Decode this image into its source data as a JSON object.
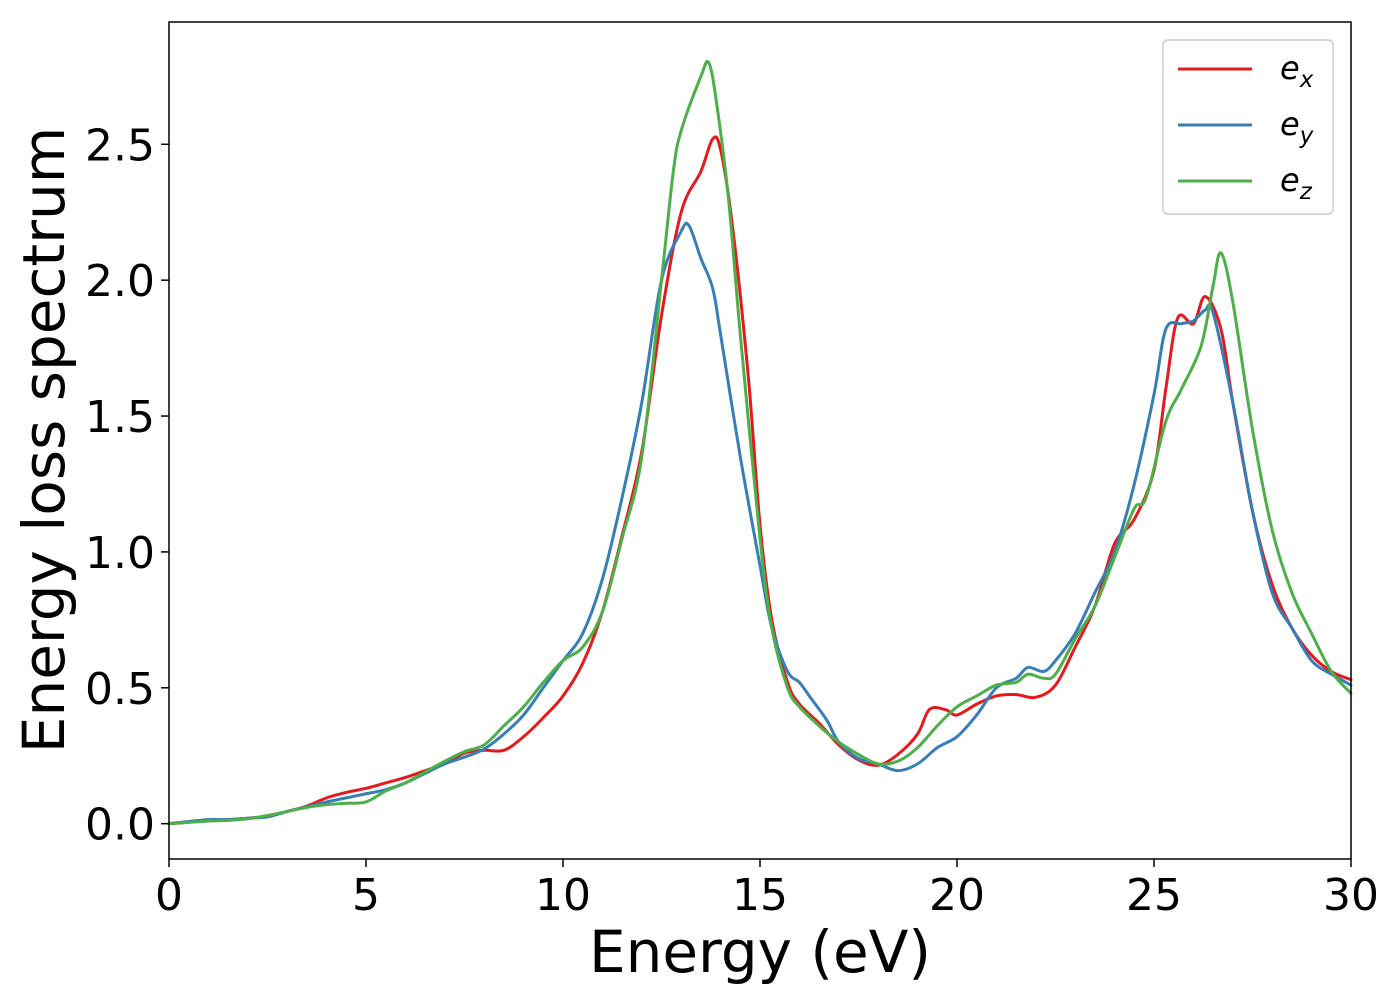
{
  "chart_data": {
    "type": "line",
    "title": "",
    "xlabel": "Energy (eV)",
    "ylabel": "Energy loss spectrum",
    "xlim": [
      0,
      30
    ],
    "ylim": [
      -0.13,
      2.95
    ],
    "xticks": [
      0,
      5,
      10,
      15,
      20,
      25,
      30
    ],
    "yticks": [
      0.0,
      0.5,
      1.0,
      1.5,
      2.0,
      2.5
    ],
    "xtick_labels": [
      "0",
      "5",
      "10",
      "15",
      "20",
      "25",
      "30"
    ],
    "ytick_labels": [
      "0.0",
      "0.5",
      "1.0",
      "1.5",
      "2.0",
      "2.5"
    ],
    "grid": false,
    "legend_position": "top-right",
    "series": [
      {
        "name": "e_x",
        "label_base": "e",
        "label_sub": "x",
        "color": "#e41a1c",
        "points": [
          [
            0,
            0.0
          ],
          [
            0.5,
            0.005
          ],
          [
            1,
            0.01
          ],
          [
            1.5,
            0.015
          ],
          [
            2,
            0.02
          ],
          [
            2.5,
            0.028
          ],
          [
            3,
            0.045
          ],
          [
            3.5,
            0.065
          ],
          [
            4,
            0.095
          ],
          [
            4.5,
            0.115
          ],
          [
            5,
            0.13
          ],
          [
            5.5,
            0.15
          ],
          [
            6,
            0.17
          ],
          [
            6.5,
            0.195
          ],
          [
            7,
            0.22
          ],
          [
            7.5,
            0.26
          ],
          [
            8,
            0.27
          ],
          [
            8.5,
            0.27
          ],
          [
            9,
            0.32
          ],
          [
            9.5,
            0.39
          ],
          [
            10,
            0.47
          ],
          [
            10.5,
            0.59
          ],
          [
            11,
            0.78
          ],
          [
            11.5,
            1.06
          ],
          [
            12,
            1.37
          ],
          [
            12.5,
            1.87
          ],
          [
            13,
            2.25
          ],
          [
            13.5,
            2.4
          ],
          [
            13.8,
            2.52
          ],
          [
            14,
            2.48
          ],
          [
            14.3,
            2.2
          ],
          [
            14.7,
            1.65
          ],
          [
            15,
            1.1
          ],
          [
            15.3,
            0.75
          ],
          [
            15.7,
            0.52
          ],
          [
            16,
            0.44
          ],
          [
            16.5,
            0.37
          ],
          [
            17,
            0.29
          ],
          [
            17.5,
            0.235
          ],
          [
            18,
            0.215
          ],
          [
            18.5,
            0.255
          ],
          [
            19,
            0.33
          ],
          [
            19.3,
            0.42
          ],
          [
            19.7,
            0.42
          ],
          [
            20,
            0.4
          ],
          [
            20.5,
            0.44
          ],
          [
            21,
            0.47
          ],
          [
            21.5,
            0.475
          ],
          [
            22,
            0.465
          ],
          [
            22.5,
            0.51
          ],
          [
            23,
            0.65
          ],
          [
            23.5,
            0.8
          ],
          [
            24,
            1.03
          ],
          [
            24.5,
            1.12
          ],
          [
            25,
            1.3
          ],
          [
            25.3,
            1.6
          ],
          [
            25.6,
            1.86
          ],
          [
            26,
            1.84
          ],
          [
            26.3,
            1.94
          ],
          [
            26.7,
            1.82
          ],
          [
            27,
            1.55
          ],
          [
            27.5,
            1.15
          ],
          [
            28,
            0.88
          ],
          [
            28.5,
            0.72
          ],
          [
            29,
            0.62
          ],
          [
            29.5,
            0.56
          ],
          [
            30,
            0.53
          ]
        ]
      },
      {
        "name": "e_y",
        "label_base": "e",
        "label_sub": "y",
        "color": "#377eb8",
        "points": [
          [
            0,
            0.0
          ],
          [
            0.5,
            0.008
          ],
          [
            1,
            0.015
          ],
          [
            1.5,
            0.015
          ],
          [
            2,
            0.02
          ],
          [
            2.5,
            0.025
          ],
          [
            3,
            0.045
          ],
          [
            3.5,
            0.062
          ],
          [
            4,
            0.08
          ],
          [
            4.5,
            0.095
          ],
          [
            5,
            0.11
          ],
          [
            5.5,
            0.125
          ],
          [
            6,
            0.15
          ],
          [
            6.5,
            0.185
          ],
          [
            7,
            0.22
          ],
          [
            7.5,
            0.245
          ],
          [
            8,
            0.275
          ],
          [
            8.5,
            0.33
          ],
          [
            9,
            0.4
          ],
          [
            9.5,
            0.5
          ],
          [
            10,
            0.6
          ],
          [
            10.5,
            0.7
          ],
          [
            11,
            0.9
          ],
          [
            11.5,
            1.2
          ],
          [
            12,
            1.55
          ],
          [
            12.5,
            2.0
          ],
          [
            13,
            2.18
          ],
          [
            13.2,
            2.2
          ],
          [
            13.5,
            2.08
          ],
          [
            13.8,
            1.97
          ],
          [
            14,
            1.8
          ],
          [
            14.5,
            1.35
          ],
          [
            15,
            0.95
          ],
          [
            15.3,
            0.72
          ],
          [
            15.7,
            0.56
          ],
          [
            16,
            0.52
          ],
          [
            16.3,
            0.46
          ],
          [
            16.7,
            0.38
          ],
          [
            17,
            0.3
          ],
          [
            17.5,
            0.24
          ],
          [
            18,
            0.22
          ],
          [
            18.5,
            0.195
          ],
          [
            19,
            0.22
          ],
          [
            19.5,
            0.28
          ],
          [
            20,
            0.32
          ],
          [
            20.5,
            0.4
          ],
          [
            21,
            0.5
          ],
          [
            21.5,
            0.535
          ],
          [
            21.8,
            0.575
          ],
          [
            22.2,
            0.56
          ],
          [
            22.5,
            0.6
          ],
          [
            23,
            0.7
          ],
          [
            23.5,
            0.85
          ],
          [
            24,
            1.0
          ],
          [
            24.5,
            1.25
          ],
          [
            25,
            1.58
          ],
          [
            25.3,
            1.82
          ],
          [
            25.7,
            1.84
          ],
          [
            26,
            1.85
          ],
          [
            26.3,
            1.89
          ],
          [
            26.5,
            1.88
          ],
          [
            27,
            1.55
          ],
          [
            27.5,
            1.15
          ],
          [
            28,
            0.85
          ],
          [
            28.5,
            0.72
          ],
          [
            29,
            0.6
          ],
          [
            29.5,
            0.55
          ],
          [
            30,
            0.51
          ]
        ]
      },
      {
        "name": "e_z",
        "label_base": "e",
        "label_sub": "z",
        "color": "#4daf4a",
        "points": [
          [
            0,
            0.0
          ],
          [
            0.5,
            0.005
          ],
          [
            1,
            0.01
          ],
          [
            1.5,
            0.012
          ],
          [
            2,
            0.018
          ],
          [
            2.5,
            0.03
          ],
          [
            3,
            0.045
          ],
          [
            3.5,
            0.06
          ],
          [
            4,
            0.07
          ],
          [
            4.5,
            0.075
          ],
          [
            5,
            0.08
          ],
          [
            5.5,
            0.12
          ],
          [
            6,
            0.15
          ],
          [
            6.5,
            0.19
          ],
          [
            7,
            0.23
          ],
          [
            7.5,
            0.265
          ],
          [
            8,
            0.29
          ],
          [
            8.5,
            0.36
          ],
          [
            9,
            0.43
          ],
          [
            9.5,
            0.52
          ],
          [
            10,
            0.6
          ],
          [
            10.5,
            0.65
          ],
          [
            11,
            0.78
          ],
          [
            11.5,
            1.05
          ],
          [
            12,
            1.35
          ],
          [
            12.5,
            2.0
          ],
          [
            12.8,
            2.4
          ],
          [
            13,
            2.55
          ],
          [
            13.5,
            2.75
          ],
          [
            13.7,
            2.8
          ],
          [
            13.9,
            2.65
          ],
          [
            14.2,
            2.3
          ],
          [
            14.5,
            1.8
          ],
          [
            15,
            1.05
          ],
          [
            15.3,
            0.72
          ],
          [
            15.7,
            0.5
          ],
          [
            16,
            0.43
          ],
          [
            16.5,
            0.36
          ],
          [
            17,
            0.3
          ],
          [
            17.5,
            0.255
          ],
          [
            18,
            0.22
          ],
          [
            18.5,
            0.23
          ],
          [
            19,
            0.28
          ],
          [
            19.5,
            0.36
          ],
          [
            20,
            0.43
          ],
          [
            20.5,
            0.47
          ],
          [
            21,
            0.51
          ],
          [
            21.5,
            0.52
          ],
          [
            21.8,
            0.55
          ],
          [
            22.2,
            0.535
          ],
          [
            22.5,
            0.55
          ],
          [
            23,
            0.68
          ],
          [
            23.5,
            0.8
          ],
          [
            24,
            0.98
          ],
          [
            24.5,
            1.16
          ],
          [
            24.8,
            1.2
          ],
          [
            25.3,
            1.48
          ],
          [
            25.7,
            1.6
          ],
          [
            26.2,
            1.76
          ],
          [
            26.5,
            1.98
          ],
          [
            26.7,
            2.1
          ],
          [
            27,
            1.92
          ],
          [
            27.5,
            1.45
          ],
          [
            28,
            1.08
          ],
          [
            28.5,
            0.85
          ],
          [
            29,
            0.7
          ],
          [
            29.5,
            0.56
          ],
          [
            30,
            0.48
          ]
        ]
      }
    ]
  }
}
